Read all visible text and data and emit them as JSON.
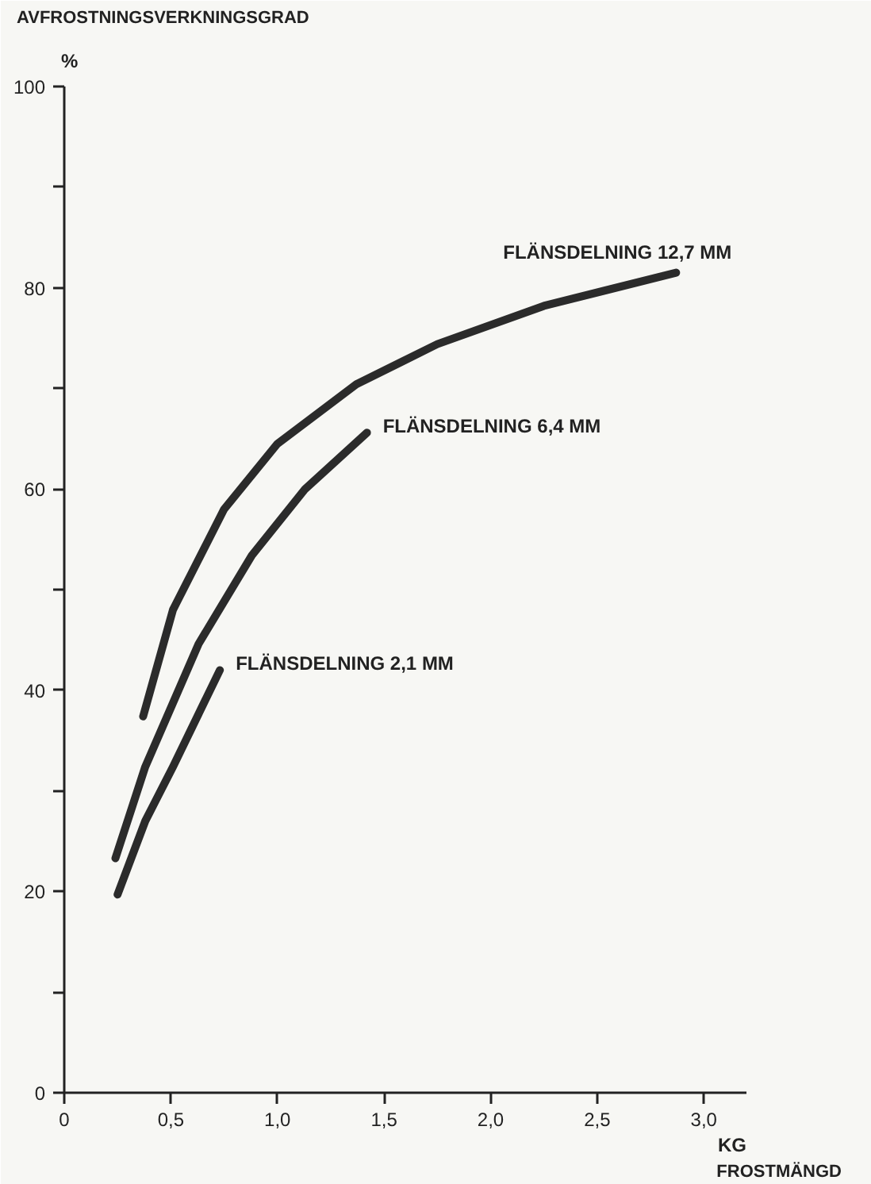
{
  "chart_data": {
    "type": "line",
    "ylabel": "AVFROSTNINGSVERKNINGSGRAD",
    "xlabel": "FROSTMÄNGD",
    "annotations": [
      "%",
      "KG"
    ],
    "xlim": [
      0,
      3.2
    ],
    "ylim": [
      0,
      100
    ],
    "xticks": [
      0,
      {
        "value": 0.5,
        "label": "0,5"
      },
      {
        "value": 1.0,
        "label": "1,0"
      },
      {
        "value": 1.5,
        "label": "1,5"
      },
      {
        "value": 2.0,
        "label": "2,0"
      },
      {
        "value": 2.5,
        "label": "2,5"
      },
      {
        "value": 3.0,
        "label": "3,0"
      }
    ],
    "yticks": [
      0,
      {
        "value": 10,
        "label": null
      },
      20,
      {
        "value": 30,
        "label": null
      },
      40,
      {
        "value": 50,
        "label": null
      },
      60,
      {
        "value": 70,
        "label": null
      },
      80,
      {
        "value": 90,
        "label": null
      },
      100
    ],
    "grid": false,
    "marker": "none",
    "line_style": "solid",
    "series": [
      {
        "name": "FLÄNSDELNING 12,7 MM",
        "color": "#2b2b2b",
        "x": [
          0.37,
          0.51,
          0.75,
          1.0,
          1.37,
          1.75,
          2.25,
          2.87
        ],
        "values": [
          37.4,
          48,
          58,
          64.5,
          70.4,
          74.4,
          78.2,
          81.5
        ]
      },
      {
        "name": "FLÄNSDELNING 6,4 MM",
        "color": "#2b2b2b",
        "x": [
          0.24,
          0.38,
          0.63,
          0.88,
          1.13,
          1.42
        ],
        "values": [
          23.3,
          32.4,
          44.6,
          53.4,
          60,
          65.6
        ]
      },
      {
        "name": "FLÄNSDELNING 2,1 MM",
        "color": "#2b2b2b",
        "x": [
          0.25,
          0.38,
          0.51,
          0.73
        ],
        "values": [
          19.7,
          27,
          32.4,
          42
        ]
      }
    ]
  }
}
